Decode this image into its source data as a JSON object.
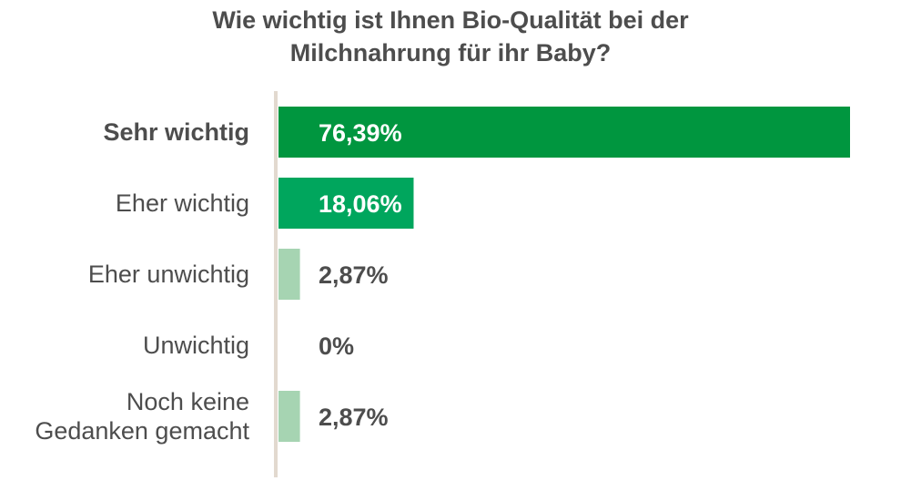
{
  "chart_data": {
    "type": "bar",
    "orientation": "horizontal",
    "title_lines": [
      "Wie wichtig ist Ihnen Bio-Qualität bei der",
      "Milchnahrung für ihr Baby?"
    ],
    "categories": [
      [
        "Sehr wichtig"
      ],
      [
        "Eher wichtig"
      ],
      [
        "Eher unwichtig"
      ],
      [
        "Unwichtig"
      ],
      [
        "Noch keine",
        "Gedanken gemacht"
      ]
    ],
    "values": [
      76.39,
      18.06,
      2.87,
      0,
      2.87
    ],
    "value_labels": [
      "76,39%",
      "18,06%",
      "2,87%",
      "0%",
      "2,87%"
    ],
    "bar_colors": [
      "#00963f",
      "#00a65d",
      "#a6d4b2",
      "#a6d4b2",
      "#a6d4b2"
    ],
    "xlim": [
      0,
      76.39
    ],
    "axis_line_color": "#e2d9cf",
    "grid": false,
    "legend": "none"
  }
}
